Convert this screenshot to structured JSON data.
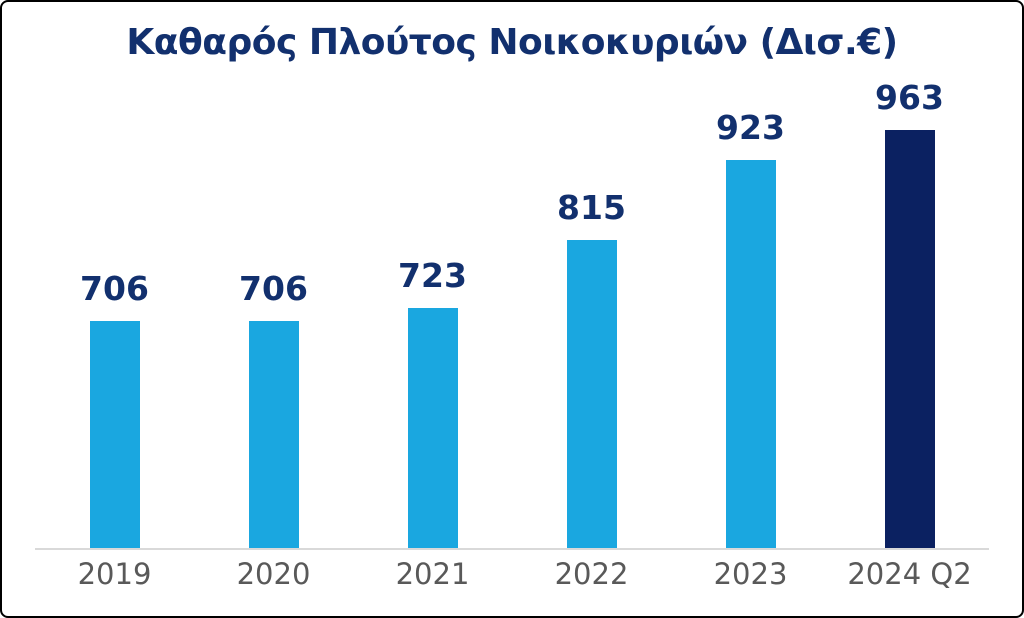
{
  "frame": {
    "background": "#FFFFFF",
    "border_color": "#000000"
  },
  "colors": {
    "title_text": "#12306E",
    "value_label_text": "#12306E",
    "bar_light_blue": "#1AA7E0",
    "bar_dark_navy": "#0B2161",
    "axis_line": "#D9D9D9",
    "tick_label_text": "#595959"
  },
  "chart_data": {
    "type": "bar",
    "title": "Καθαρός Πλούτος Νοικοκυριών (Δισ.€)",
    "categories": [
      "2019",
      "2020",
      "2021",
      "2022",
      "2023",
      "2024 Q2"
    ],
    "values": [
      706,
      706,
      723,
      815,
      923,
      963
    ],
    "data_labels": [
      "706",
      "706",
      "723",
      "815",
      "923",
      "963"
    ],
    "bar_colors": [
      "#1AA7E0",
      "#1AA7E0",
      "#1AA7E0",
      "#1AA7E0",
      "#1AA7E0",
      "#0B2161"
    ],
    "xlabel": "",
    "ylabel": "",
    "ylim": [
      400,
      1000
    ],
    "grid": false,
    "legend": false,
    "data_labels_position": "above-bars",
    "baseline_axis": "x-axis light gray line"
  }
}
